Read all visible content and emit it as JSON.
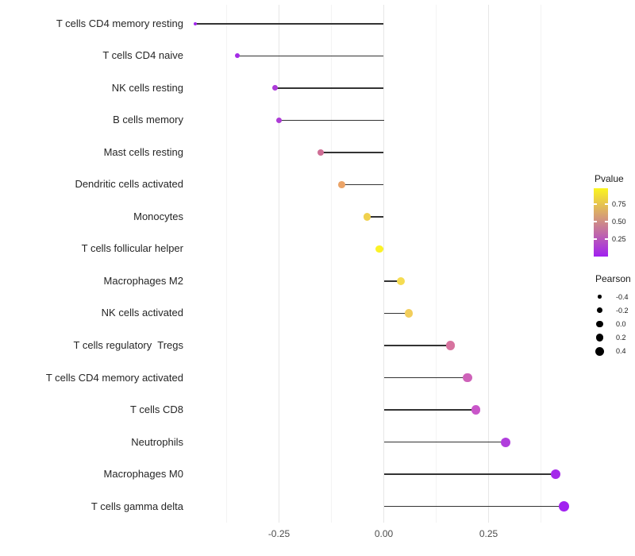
{
  "chart_data": {
    "type": "lollipop",
    "orientation": "horizontal",
    "title": "",
    "xlabel": "",
    "ylabel": "",
    "categories": [
      "T cells CD4 memory resting",
      "T cells CD4 naive",
      "NK cells resting",
      "B cells memory",
      "Mast cells resting",
      "Dendritic cells activated",
      "Monocytes",
      "T cells follicular helper",
      "Macrophages M2",
      "NK cells activated",
      "T cells regulatory  Tregs",
      "T cells CD4 memory activated",
      "T cells CD8",
      "Neutrophils",
      "Macrophages M0",
      "T cells gamma delta"
    ],
    "series": [
      {
        "name": "Pearson",
        "values": [
          -0.45,
          -0.35,
          -0.26,
          -0.25,
          -0.15,
          -0.1,
          -0.04,
          -0.01,
          0.04,
          0.06,
          0.16,
          0.2,
          0.22,
          0.29,
          0.41,
          0.43
        ]
      },
      {
        "name": "Pvalue (estimated from color scale)",
        "values": [
          0.05,
          0.07,
          0.16,
          0.17,
          0.46,
          0.61,
          0.74,
          0.94,
          0.8,
          0.73,
          0.45,
          0.39,
          0.34,
          0.19,
          0.06,
          0.02
        ]
      }
    ],
    "point_colors": [
      "#A125EC",
      "#A42BE6",
      "#AC3AD8",
      "#AD3BD6",
      "#CF6E95",
      "#EBA468",
      "#F0D14E",
      "#FBF227",
      "#F5DC52",
      "#F2CE5C",
      "#D7739F",
      "#CE62B9",
      "#C956C9",
      "#B03EDC",
      "#A52AEA",
      "#A121F0"
    ],
    "baseline_x": 0,
    "xlim": [
      -0.49,
      0.46
    ],
    "x_ticks": {
      "labels": [
        "-0.25",
        "0.00",
        "0.25"
      ],
      "values": [
        -0.25,
        0.0,
        0.25
      ]
    },
    "grid": {
      "vertical_major": [
        -0.25,
        0.0,
        0.25
      ],
      "vertical_minor": [
        -0.375,
        -0.125,
        0.125,
        0.375
      ],
      "horizontal": false
    },
    "size_encoding": {
      "variable": "Pearson",
      "range_values": [
        -0.4,
        0.4
      ]
    },
    "color_encoding": {
      "variable": "Pvalue",
      "low_color": "#A020F0",
      "high_color": "#FCF60A"
    },
    "legend": {
      "pvalue": {
        "title": "Pvalue",
        "tick_labels": [
          "0.75",
          "0.50",
          "0.25"
        ],
        "tick_values": [
          0.75,
          0.5,
          0.25
        ],
        "value_range": [
          0.0,
          0.98
        ],
        "gradient_top": "#FBF51F",
        "gradient_bottom": "#A120F0"
      },
      "pearson": {
        "title": "Pearson",
        "entry_labels": [
          "-0.4",
          "-0.2",
          "0.0",
          "0.2",
          "0.4"
        ],
        "entry_values": [
          -0.4,
          -0.2,
          0.0,
          0.2,
          0.4
        ],
        "dot_color": "#000000"
      }
    },
    "colors": {
      "stem": "#333333",
      "grid_major": "#E7E7E7",
      "grid_minor": "#F3F3F3",
      "x_axis_text": "#4D4D4D",
      "category_text": "#262626",
      "background": "#FFFFFF"
    }
  }
}
